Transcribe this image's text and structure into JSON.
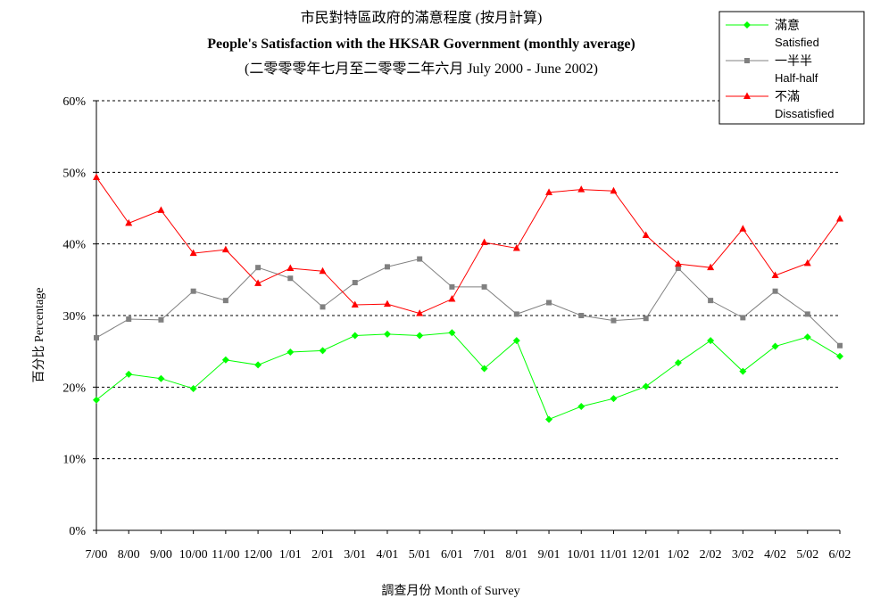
{
  "chart_data": {
    "type": "line",
    "title_zh": "市民對特區政府的滿意程度 (按月計算)",
    "title_en": "People's Satisfaction with the HKSAR Government (monthly average)",
    "subtitle": "(二零零零年七月至二零零二年六月 July 2000 - June 2002)",
    "xlabel": "調查月份 Month of Survey",
    "ylabel": "百分比 Percentage",
    "ylim": [
      0,
      60
    ],
    "yticks": [
      "0%",
      "10%",
      "20%",
      "30%",
      "40%",
      "50%",
      "60%"
    ],
    "grid": true,
    "legend_position": "top-right",
    "categories": [
      "7/00",
      "8/00",
      "9/00",
      "10/00",
      "11/00",
      "12/00",
      "1/01",
      "2/01",
      "3/01",
      "4/01",
      "5/01",
      "6/01",
      "7/01",
      "8/01",
      "9/01",
      "10/01",
      "11/01",
      "12/01",
      "1/02",
      "2/02",
      "3/02",
      "4/02",
      "5/02",
      "6/02"
    ],
    "series": [
      {
        "name_zh": "滿意",
        "name_en": "Satisfied",
        "color": "#00ff00",
        "marker": "diamond",
        "values": [
          18.2,
          21.8,
          21.2,
          19.8,
          23.8,
          23.1,
          24.9,
          25.1,
          27.2,
          27.4,
          27.2,
          27.6,
          22.6,
          26.5,
          15.5,
          17.3,
          18.4,
          20.1,
          23.4,
          26.5,
          22.2,
          25.7,
          27.0,
          24.3
        ]
      },
      {
        "name_zh": "一半半",
        "name_en": "Half-half",
        "color": "#808080",
        "marker": "square",
        "values": [
          26.9,
          29.5,
          29.4,
          33.4,
          32.1,
          36.7,
          35.2,
          31.2,
          34.6,
          36.8,
          37.9,
          34.0,
          34.0,
          30.2,
          31.8,
          30.0,
          29.3,
          29.6,
          36.6,
          32.1,
          29.7,
          33.4,
          30.2,
          25.8
        ]
      },
      {
        "name_zh": "不滿",
        "name_en": "Dissatisfied",
        "color": "#ff0000",
        "marker": "triangle",
        "values": [
          49.3,
          42.9,
          44.7,
          38.7,
          39.2,
          34.5,
          36.6,
          36.2,
          31.5,
          31.6,
          30.3,
          32.3,
          40.2,
          39.4,
          47.2,
          47.6,
          47.4,
          41.2,
          37.2,
          36.7,
          42.1,
          35.6,
          37.3,
          43.5
        ]
      }
    ]
  }
}
